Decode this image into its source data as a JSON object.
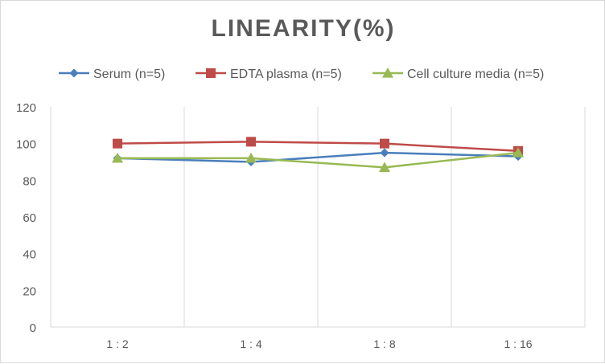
{
  "chart_data": {
    "type": "line",
    "title": "LINEARITY(%)",
    "categories": [
      "1:2",
      "1:4",
      "1:8",
      "1:16"
    ],
    "ylim": [
      0,
      120
    ],
    "yticks": [
      0,
      20,
      40,
      60,
      80,
      100,
      120
    ],
    "grid": "vertical category gridlines",
    "legend_position": "top",
    "series": [
      {
        "name": "Serum (n=5)",
        "values": [
          92,
          90,
          95,
          93
        ],
        "color": "#4a7ebb",
        "marker": "diamond"
      },
      {
        "name": "EDTA plasma (n=5)",
        "values": [
          100,
          101,
          100,
          96
        ],
        "color": "#be4b48",
        "marker": "square"
      },
      {
        "name": "Cell culture media (n=5)",
        "values": [
          92,
          92,
          87,
          95
        ],
        "color": "#98b954",
        "marker": "triangle"
      }
    ]
  }
}
